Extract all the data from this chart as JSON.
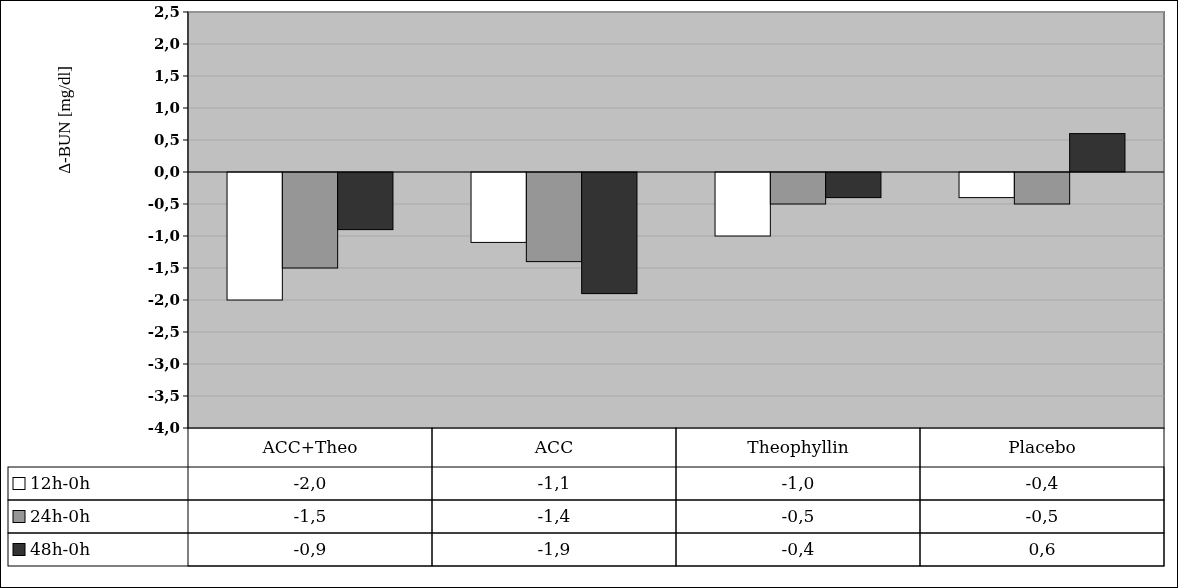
{
  "chart_data": {
    "type": "bar",
    "ylabel": "Δ-BUN [mg/dl]",
    "categories": [
      "ACC+Theo",
      "ACC",
      "Theophyllin",
      "Placebo"
    ],
    "series": [
      {
        "name": "12h-0h",
        "color": "#ffffff",
        "values": [
          -2.0,
          -1.1,
          -1.0,
          -0.4
        ],
        "value_labels": [
          "-2,0",
          "-1,1",
          "-1,0",
          "-0,4"
        ]
      },
      {
        "name": "24h-0h",
        "color": "#969696",
        "values": [
          -1.5,
          -1.4,
          -0.5,
          -0.5
        ],
        "value_labels": [
          "-1,5",
          "-1,4",
          "-0,5",
          "-0,5"
        ]
      },
      {
        "name": "48h-0h",
        "color": "#333333",
        "values": [
          -0.9,
          -1.9,
          -0.4,
          0.6
        ],
        "value_labels": [
          "-0,9",
          "-1,9",
          "-0,4",
          "0,6"
        ]
      }
    ],
    "ylim": [
      -4,
      2.5
    ],
    "yticks": [
      {
        "value": -4,
        "label": "-4,0"
      },
      {
        "value": -3.5,
        "label": "-3,5"
      },
      {
        "value": -3,
        "label": "-3,0"
      },
      {
        "value": -2.5,
        "label": "-2,5"
      },
      {
        "value": -2,
        "label": "-2,0"
      },
      {
        "value": -1.5,
        "label": "-1,5"
      },
      {
        "value": -1,
        "label": "-1,0"
      },
      {
        "value": -0.5,
        "label": "-0,5"
      },
      {
        "value": 0,
        "label": "0,0"
      },
      {
        "value": 0.5,
        "label": "0,5"
      },
      {
        "value": 1,
        "label": "1,0"
      },
      {
        "value": 1.5,
        "label": "1,5"
      },
      {
        "value": 2,
        "label": "2,0"
      },
      {
        "value": 2.5,
        "label": "2,5"
      }
    ],
    "grid": "y",
    "legend": "bottom left"
  }
}
